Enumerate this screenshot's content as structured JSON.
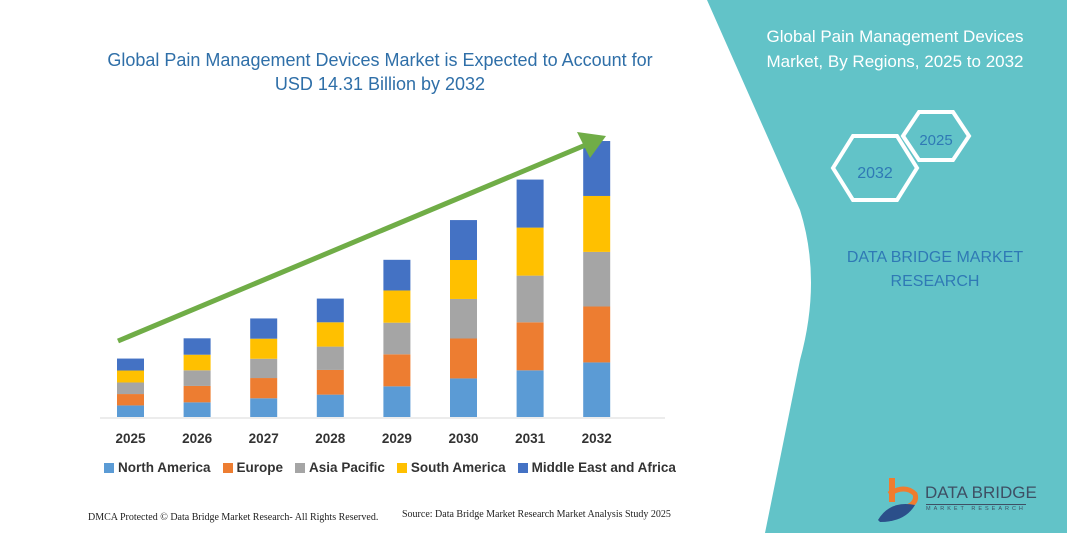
{
  "header": {
    "title": "Global Pain Management Devices Market is Expected to Account for USD 14.31 Billion by 2032"
  },
  "side_panel": {
    "title": "Global Pain Management Devices Market, By Regions, 2025 to 2032",
    "hex_start": "2025",
    "hex_end": "2032",
    "brand": "DATA BRIDGE MARKET RESEARCH",
    "logo_text": "DATA BRIDGE",
    "logo_sub": "MARKET RESEARCH",
    "panel_color": "#62c3c8"
  },
  "footer": {
    "dmca": "DMCA Protected © Data Bridge Market Research- All Rights Reserved.",
    "source": "Source: Data Bridge Market Research Market Analysis Study 2025"
  },
  "chart_data": {
    "type": "bar",
    "stacked": true,
    "title": "Global Pain Management Devices Market is Expected to Account for USD 14.31 Billion by 2032",
    "categories": [
      "2025",
      "2026",
      "2027",
      "2028",
      "2029",
      "2030",
      "2031",
      "2032"
    ],
    "unit": "USD Billion (estimated, scaled to 2032 total of 14.31)",
    "legend_position": "bottom",
    "grid": false,
    "trend_arrow_color": "#70ad47",
    "series": [
      {
        "name": "North America",
        "color": "#5b9bd5",
        "values": [
          0.6,
          0.76,
          0.97,
          1.16,
          1.59,
          2.0,
          2.42,
          2.83
        ]
      },
      {
        "name": "Europe",
        "color": "#ed7d31",
        "values": [
          0.59,
          0.85,
          1.05,
          1.28,
          1.66,
          2.07,
          2.49,
          2.9
        ]
      },
      {
        "name": "Asia Pacific",
        "color": "#a5a5a5",
        "values": [
          0.6,
          0.81,
          1.0,
          1.21,
          1.64,
          2.05,
          2.42,
          2.83
        ]
      },
      {
        "name": "South America",
        "color": "#ffc000",
        "values": [
          0.62,
          0.81,
          1.04,
          1.26,
          1.67,
          2.02,
          2.49,
          2.9
        ]
      },
      {
        "name": "Middle East and Africa",
        "color": "#4472c4",
        "values": [
          0.62,
          0.85,
          1.05,
          1.23,
          1.59,
          2.07,
          2.49,
          2.85
        ]
      }
    ]
  }
}
